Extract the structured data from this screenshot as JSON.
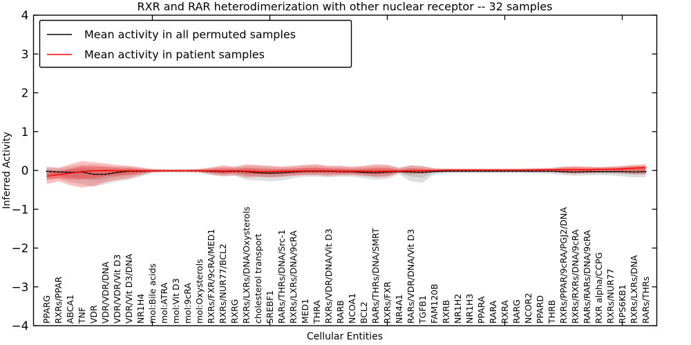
{
  "chart_data": {
    "type": "line",
    "title": "RXR and RAR heterodimerization with other nuclear receptor -- 32 samples",
    "xlabel": "Cellular Entities",
    "ylabel": "Inferred Activity",
    "ylim": [
      -4,
      4
    ],
    "yticks": [
      -4,
      -3,
      -2,
      -1,
      0,
      1,
      2,
      3,
      4
    ],
    "xtick_major_every": 10,
    "grid": false,
    "legend_position": "upper left",
    "categories": [
      "PPARG",
      "RXRs/PPAR",
      "ABCA1",
      "TNF",
      "VDR",
      "VDR/VDR/DNA",
      "VDR/VDR/Vit D3",
      "VDR/Vit D3/DNA",
      "NR1H4",
      "mol:Bile acids",
      "mol:ATRA",
      "mol:Vit D3",
      "mol:9cRA",
      "mol:Oxysterols",
      "RXRs/FXR/9cRA/MED1",
      "RXRs/NUR77/BCL2",
      "RXRG",
      "RXRs/LXRs/DNA/Oxysterols",
      "cholesterol transport",
      "SREBF1",
      "RARs/THRs/DNA/Src-1",
      "RXRs/LXRs/DNA/9cRA",
      "MED1",
      "THRA",
      "RXRs/VDR/DNA/Vit D3",
      "RARB",
      "NCOA1",
      "BCL2",
      "RARs/THRs/DNA/SMRT",
      "RXRs/FXR",
      "NR4A1",
      "RARs/VDR/DNA/Vit D3",
      "TGFB1",
      "FAM120B",
      "RXRB",
      "NR1H2",
      "NR1H3",
      "PPARA",
      "RARA",
      "RXRA",
      "RARG",
      "NCOR2",
      "PPARD",
      "THRB",
      "RXRs/PPAR/9cRA/PGJ2/DNA",
      "RXRs/RXRs/DNA/9cRA",
      "RARs/RARs/DNA/9cRA",
      "RXR alpha/CCPG",
      "RXRs/NUR77",
      "RPS6KB1",
      "RXRs/LXRs/DNA",
      "RARs/THRs"
    ],
    "series": [
      {
        "name": "Mean activity in all permuted samples",
        "color": "#000000",
        "values": [
          -0.02,
          -0.04,
          -0.05,
          -0.04,
          -0.1,
          -0.1,
          -0.05,
          -0.02,
          -0.02,
          -0.01,
          -0.01,
          -0.01,
          -0.01,
          -0.01,
          -0.02,
          -0.03,
          -0.02,
          -0.03,
          -0.06,
          -0.07,
          -0.06,
          -0.04,
          -0.02,
          -0.02,
          -0.02,
          -0.03,
          -0.03,
          -0.05,
          -0.06,
          -0.04,
          -0.03,
          -0.04,
          -0.05,
          -0.03,
          -0.02,
          -0.02,
          -0.02,
          -0.02,
          -0.02,
          -0.02,
          -0.02,
          -0.02,
          -0.02,
          -0.02,
          -0.03,
          -0.04,
          -0.03,
          -0.03,
          -0.03,
          -0.03,
          -0.04,
          -0.03
        ]
      },
      {
        "name": "Mean activity in patient samples",
        "color": "#ff0000",
        "values": [
          -0.15,
          -0.11,
          -0.07,
          -0.03,
          -0.01,
          0.0,
          -0.01,
          -0.01,
          -0.01,
          -0.01,
          -0.01,
          -0.01,
          -0.01,
          -0.01,
          -0.01,
          -0.02,
          -0.01,
          -0.02,
          -0.03,
          -0.03,
          -0.02,
          -0.02,
          -0.01,
          -0.01,
          -0.01,
          -0.02,
          -0.02,
          -0.02,
          -0.02,
          -0.02,
          -0.02,
          -0.01,
          -0.01,
          0.0,
          0.01,
          0.01,
          0.01,
          0.01,
          0.01,
          0.01,
          0.01,
          0.01,
          0.02,
          0.02,
          0.02,
          0.02,
          0.02,
          0.03,
          0.03,
          0.04,
          0.06,
          0.07
        ]
      }
    ],
    "bands": [
      {
        "name": "permuted samples range",
        "color": "#808080",
        "upper": [
          0.06,
          0.05,
          0.1,
          0.15,
          0.15,
          0.12,
          0.1,
          0.1,
          0.06,
          0.03,
          0.03,
          0.03,
          0.03,
          0.04,
          0.06,
          0.1,
          0.08,
          0.12,
          0.12,
          0.1,
          0.08,
          0.1,
          0.12,
          0.13,
          0.1,
          0.1,
          0.08,
          0.1,
          0.12,
          0.12,
          0.08,
          0.14,
          0.12,
          0.06,
          0.05,
          0.05,
          0.05,
          0.05,
          0.05,
          0.05,
          0.05,
          0.06,
          0.06,
          0.07,
          0.09,
          0.1,
          0.09,
          0.08,
          0.09,
          0.1,
          0.12,
          0.12
        ],
        "lower": [
          -0.2,
          -0.22,
          -0.3,
          -0.35,
          -0.42,
          -0.35,
          -0.28,
          -0.24,
          -0.16,
          -0.06,
          -0.05,
          -0.05,
          -0.05,
          -0.06,
          -0.12,
          -0.16,
          -0.14,
          -0.24,
          -0.26,
          -0.28,
          -0.26,
          -0.2,
          -0.16,
          -0.16,
          -0.18,
          -0.16,
          -0.16,
          -0.2,
          -0.24,
          -0.22,
          -0.1,
          -0.28,
          -0.32,
          -0.1,
          -0.08,
          -0.07,
          -0.07,
          -0.07,
          -0.07,
          -0.07,
          -0.07,
          -0.08,
          -0.08,
          -0.09,
          -0.12,
          -0.14,
          -0.13,
          -0.12,
          -0.13,
          -0.15,
          -0.18,
          -0.18
        ]
      },
      {
        "name": "patient samples range",
        "color": "#ff0000",
        "upper": [
          0.1,
          0.07,
          0.16,
          0.24,
          0.21,
          0.18,
          0.14,
          0.12,
          0.08,
          0.04,
          0.03,
          0.03,
          0.03,
          0.04,
          0.08,
          0.13,
          0.1,
          0.16,
          0.14,
          0.12,
          0.1,
          0.12,
          0.15,
          0.16,
          0.12,
          0.12,
          0.1,
          0.12,
          0.16,
          0.15,
          0.06,
          0.12,
          0.1,
          0.05,
          0.04,
          0.04,
          0.04,
          0.04,
          0.04,
          0.04,
          0.04,
          0.05,
          0.05,
          0.06,
          0.1,
          0.11,
          0.1,
          0.09,
          0.1,
          0.12,
          0.15,
          0.16
        ],
        "lower": [
          -0.35,
          -0.28,
          -0.38,
          -0.44,
          -0.4,
          -0.3,
          -0.24,
          -0.2,
          -0.12,
          -0.05,
          -0.04,
          -0.04,
          -0.04,
          -0.05,
          -0.1,
          -0.14,
          -0.12,
          -0.18,
          -0.16,
          -0.18,
          -0.16,
          -0.14,
          -0.12,
          -0.12,
          -0.14,
          -0.12,
          -0.12,
          -0.14,
          -0.17,
          -0.16,
          -0.06,
          -0.1,
          -0.08,
          -0.04,
          -0.03,
          -0.03,
          -0.03,
          -0.03,
          -0.03,
          -0.03,
          -0.03,
          -0.04,
          -0.04,
          -0.04,
          -0.07,
          -0.08,
          -0.07,
          -0.06,
          -0.06,
          -0.07,
          -0.09,
          -0.1
        ]
      }
    ]
  }
}
